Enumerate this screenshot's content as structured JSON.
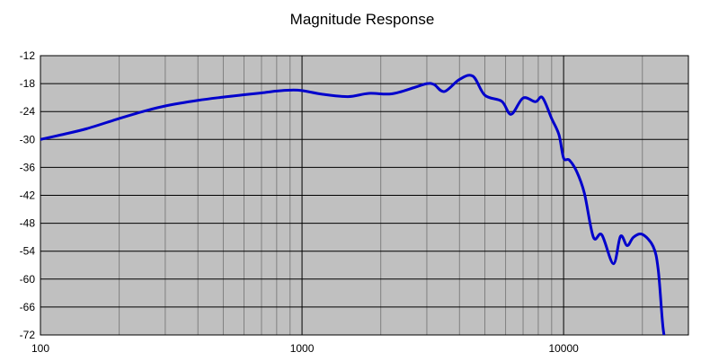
{
  "chart_data": {
    "type": "line",
    "title": "Magnitude Response",
    "xlabel": "",
    "ylabel": "",
    "x_scale": "log",
    "xlim": [
      100,
      30000
    ],
    "ylim": [
      -72,
      -12
    ],
    "x_tick_labels": [
      "100",
      "1000",
      "10000"
    ],
    "x_ticks": [
      100,
      1000,
      10000
    ],
    "y_ticks": [
      -12,
      -18,
      -24,
      -30,
      -36,
      -42,
      -48,
      -54,
      -60,
      -66,
      -72
    ],
    "y_tick_labels": [
      "-12",
      "-18",
      "-24",
      "-30",
      "-36",
      "-42",
      "-48",
      "-54",
      "-60",
      "-66",
      "-72"
    ],
    "grid": true,
    "legend": "none",
    "colors": {
      "plot_background": "#c0c0c0",
      "minor_grid": "#808080",
      "major_grid": "#000000",
      "series": "#0000cc"
    },
    "series": [
      {
        "x": [
          100,
          120,
          150,
          200,
          250,
          300,
          400,
          500,
          600,
          700,
          800,
          900,
          1000,
          1200,
          1500,
          1800,
          2200,
          2700,
          3000,
          3200,
          3500,
          4000,
          4500,
          5000,
          5800,
          6300,
          7000,
          7800,
          8300,
          9000,
          9600,
          10000,
          10500,
          11200,
          12000,
          13000,
          14000,
          15500,
          16500,
          17500,
          18500,
          20000,
          22000,
          23000,
          24000,
          25000
        ],
        "y": [
          -30,
          -29,
          -27.7,
          -25.5,
          -23.9,
          -22.8,
          -21.6,
          -20.9,
          -20.4,
          -20,
          -19.6,
          -19.4,
          -19.5,
          -20.3,
          -20.8,
          -20.1,
          -20.2,
          -18.8,
          -18.0,
          -18.2,
          -19.7,
          -17.1,
          -16.4,
          -20.5,
          -21.8,
          -24.6,
          -21.1,
          -21.9,
          -21.0,
          -25.5,
          -29.0,
          -34.0,
          -34.4,
          -36.8,
          -41.5,
          -51.0,
          -50.5,
          -56.7,
          -50.8,
          -52.8,
          -51.0,
          -50.4,
          -53.0,
          -58.0,
          -70.5,
          -76
        ]
      }
    ]
  }
}
